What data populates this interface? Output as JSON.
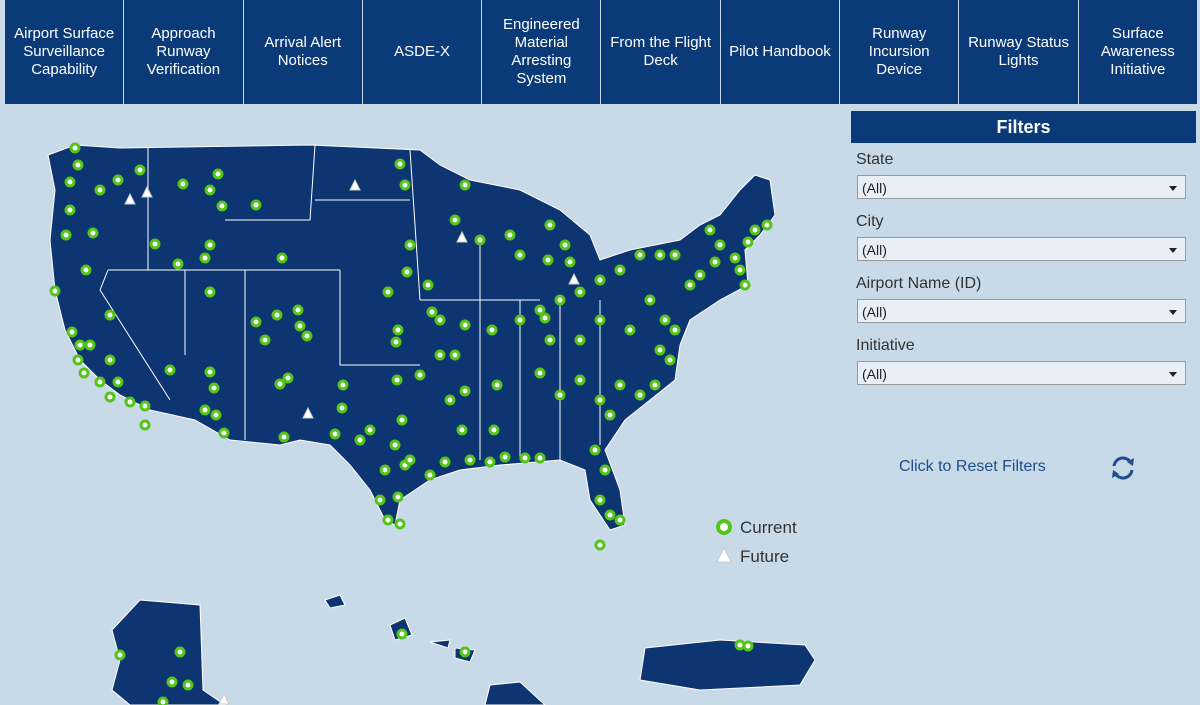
{
  "nav": {
    "tabs": [
      "Airport Surface Surveillance Capability",
      "Approach Runway Verification",
      "Arrival Alert Notices",
      "ASDE-X",
      "Engineered Material Arresting System",
      "From the Flight Deck",
      "Pilot Handbook",
      "Runway Incursion Device",
      "Runway Status Lights",
      "Surface Awareness Initiative"
    ]
  },
  "legend": {
    "items": [
      "Current",
      "Future"
    ]
  },
  "filters": {
    "title": "Filters",
    "fields": [
      {
        "label": "State",
        "value": "(All)"
      },
      {
        "label": "City",
        "value": "(All)"
      },
      {
        "label": "Airport Name (ID)",
        "value": "(All)"
      },
      {
        "label": "Initiative",
        "value": "(All)"
      }
    ],
    "reset": "Click to Reset Filters"
  }
}
